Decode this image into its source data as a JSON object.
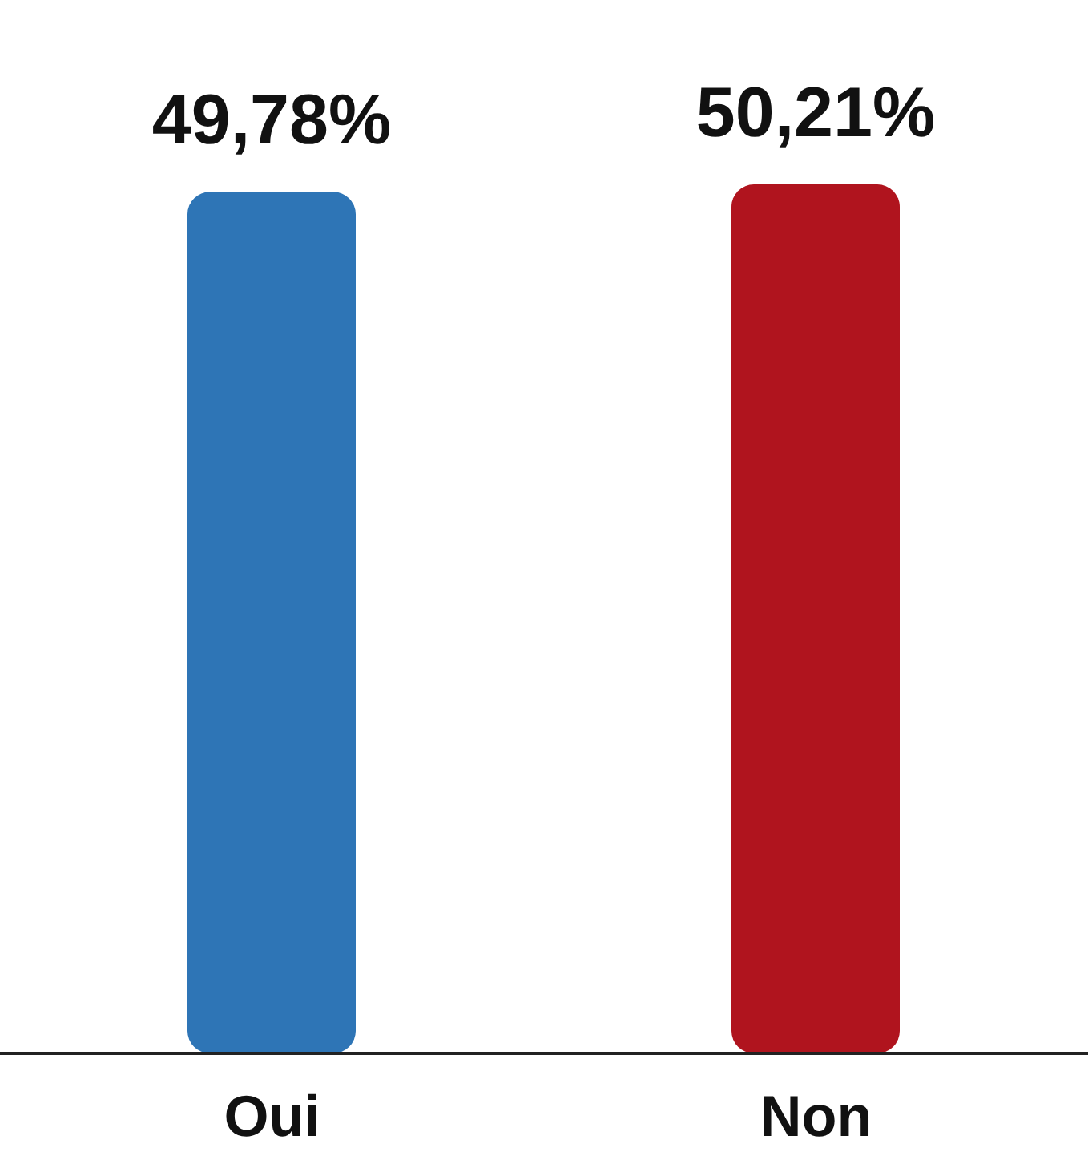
{
  "chart_data": {
    "type": "bar",
    "categories": [
      "Oui",
      "Non"
    ],
    "values": [
      49.78,
      50.21
    ],
    "colors": [
      "#2e75b6",
      "#b0141e"
    ],
    "value_labels": [
      "49,78%",
      "50,21%"
    ]
  }
}
